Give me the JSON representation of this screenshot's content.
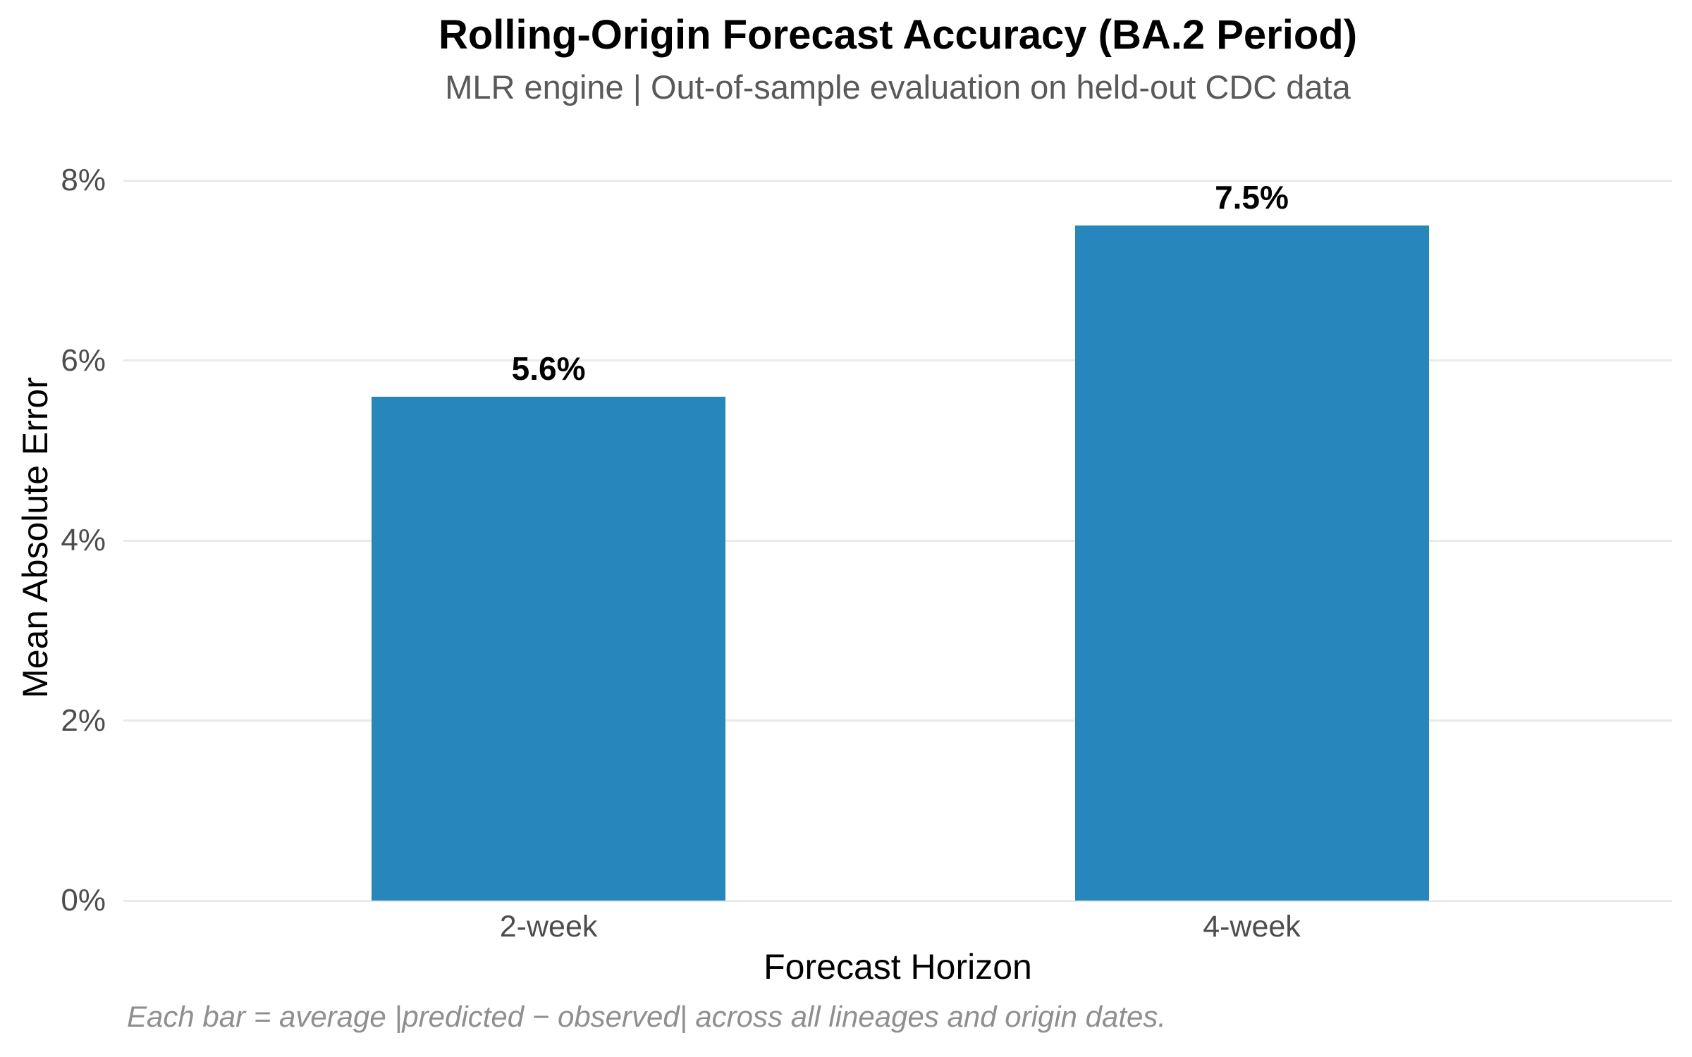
{
  "chart_data": {
    "type": "bar",
    "title": "Rolling-Origin Forecast Accuracy (BA.2 Period)",
    "subtitle": "MLR engine | Out-of-sample evaluation on held-out CDC data",
    "categories": [
      "2-week",
      "4-week"
    ],
    "values": [
      5.6,
      7.5
    ],
    "bar_value_labels": [
      "5.6%",
      "7.5%"
    ],
    "xlabel": "Forecast Horizon",
    "ylabel": "Mean Absolute Error",
    "ylim": [
      0,
      8
    ],
    "yticks": [
      0,
      2,
      4,
      6,
      8
    ],
    "ytick_labels": [
      "0%",
      "2%",
      "4%",
      "6%",
      "8%"
    ],
    "grid": "horizontal gridlines only, no axis spines",
    "legend_position": "none",
    "annotation": "Each bar = average |predicted − observed| across all lineages and origin dates."
  },
  "colors": {
    "bar": "#2787bd",
    "gridline": "#eaeaea",
    "title": "#000000",
    "subtitle": "#595959",
    "tick_label": "#4d4d4d",
    "axis_label": "#000000",
    "footnote": "#8f8f8f",
    "background": "#ffffff"
  }
}
